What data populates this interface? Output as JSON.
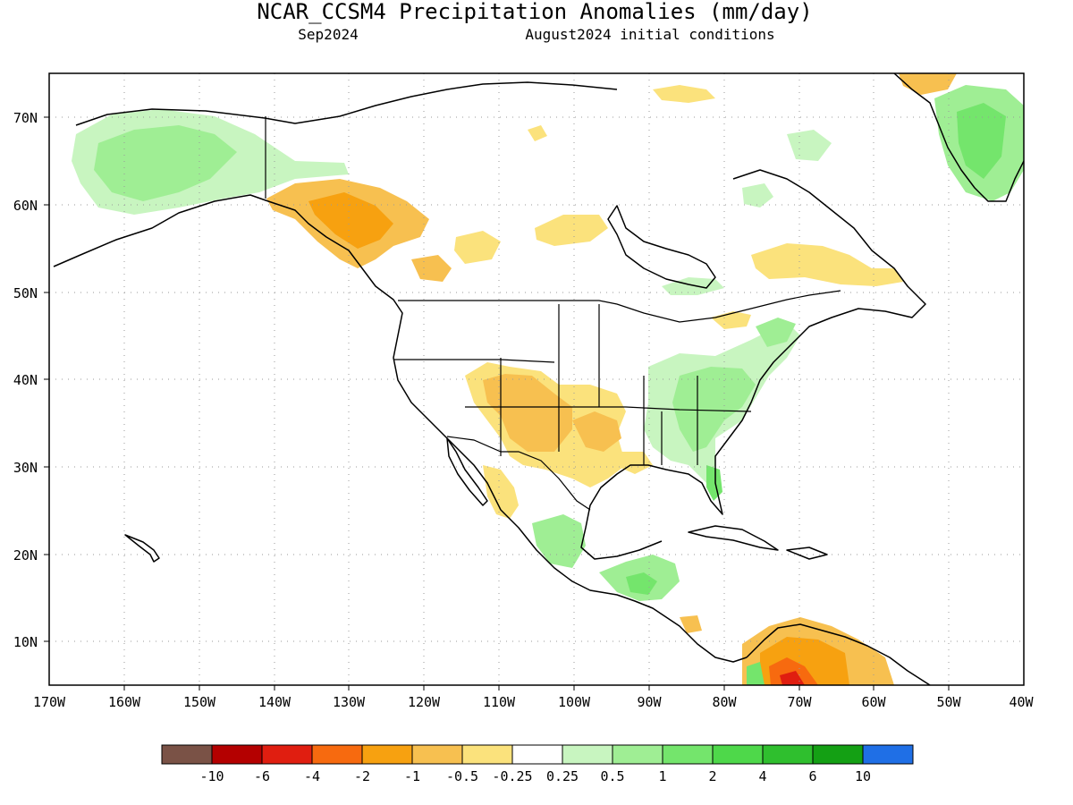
{
  "title": "NCAR_CCSM4 Precipitation Anomalies (mm/day)",
  "subtitle_left": "Sep2024",
  "subtitle_right": "August2024 initial conditions",
  "lat_ticks": [
    "70N",
    "60N",
    "50N",
    "40N",
    "30N",
    "20N",
    "10N"
  ],
  "lon_ticks": [
    "170W",
    "160W",
    "150W",
    "140W",
    "130W",
    "120W",
    "110W",
    "100W",
    "90W",
    "80W",
    "70W",
    "60W",
    "50W",
    "40W"
  ],
  "colorbar": {
    "labels": [
      "-10",
      "-6",
      "-4",
      "-2",
      "-1",
      "-0.5",
      "-0.25",
      "0.25",
      "0.5",
      "1",
      "2",
      "4",
      "6",
      "10"
    ],
    "colors": [
      "#7a5246",
      "#b40000",
      "#e01e10",
      "#f76a0f",
      "#f7a110",
      "#f7c050",
      "#fbe27c",
      "#ffffff",
      "#c8f5c0",
      "#9fee94",
      "#74e56c",
      "#4ed84a",
      "#2fbf2e",
      "#14a014",
      "#1f6fe6"
    ]
  },
  "anomaly_colors": {
    "wet_light": "#c8f5c0",
    "wet_medium": "#9fee94",
    "wet_strong": "#74e56c",
    "dry_light": "#fbe27c",
    "dry_medium": "#f7c050",
    "dry_strong": "#f7a110",
    "dry_very_strong": "#f76a0f",
    "dry_extreme": "#e01e10"
  }
}
